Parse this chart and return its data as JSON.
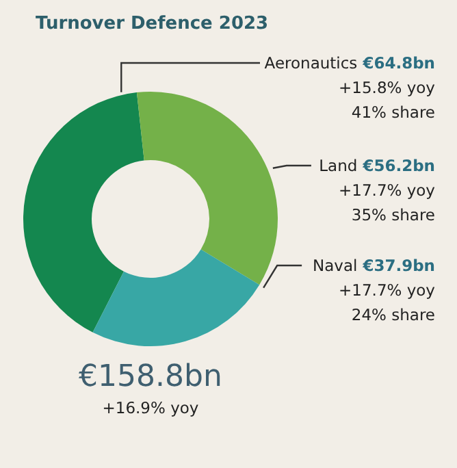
{
  "chart_data": {
    "type": "donut",
    "title": "Turnover Defence 2023",
    "categories": [
      "Aeronautics",
      "Land",
      "Naval"
    ],
    "values": [
      64.8,
      56.2,
      37.9
    ],
    "colors": [
      "#14874f",
      "#74b149",
      "#38a7a5"
    ],
    "value_labels": [
      "€64.8bn",
      "€56.2bn",
      "€37.9bn"
    ],
    "annotations": [
      {
        "text": "+15.8% yoy",
        "x": "Aeronautics"
      },
      {
        "text": "41% share",
        "x": "Aeronautics"
      },
      {
        "text": "+17.7% yoy",
        "x": "Land"
      },
      {
        "text": "35% share",
        "x": "Land"
      },
      {
        "text": "+17.7% yoy",
        "x": "Naval"
      },
      {
        "text": "24% share",
        "x": "Naval"
      },
      "€158.8bn",
      "+16.9% yoy"
    ]
  }
}
